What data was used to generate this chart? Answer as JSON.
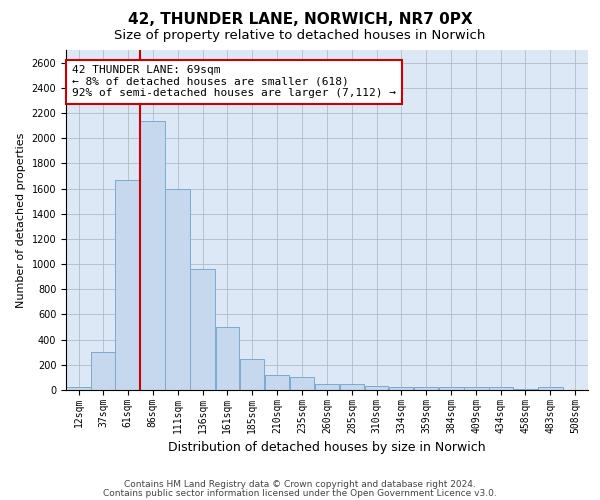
{
  "title": "42, THUNDER LANE, NORWICH, NR7 0PX",
  "subtitle": "Size of property relative to detached houses in Norwich",
  "xlabel": "Distribution of detached houses by size in Norwich",
  "ylabel": "Number of detached properties",
  "footnote1": "Contains HM Land Registry data © Crown copyright and database right 2024.",
  "footnote2": "Contains public sector information licensed under the Open Government Licence v3.0.",
  "annotation_line1": "42 THUNDER LANE: 69sqm",
  "annotation_line2": "← 8% of detached houses are smaller (618)",
  "annotation_line3": "92% of semi-detached houses are larger (7,112) →",
  "categories": [
    "12sqm",
    "37sqm",
    "61sqm",
    "86sqm",
    "111sqm",
    "136sqm",
    "161sqm",
    "185sqm",
    "210sqm",
    "235sqm",
    "260sqm",
    "285sqm",
    "310sqm",
    "334sqm",
    "359sqm",
    "384sqm",
    "409sqm",
    "434sqm",
    "458sqm",
    "483sqm",
    "508sqm"
  ],
  "values": [
    25,
    300,
    1670,
    2140,
    1595,
    960,
    500,
    250,
    120,
    100,
    50,
    45,
    35,
    25,
    20,
    20,
    20,
    20,
    5,
    20,
    0
  ],
  "bin_starts": [
    0,
    25,
    49,
    74,
    99,
    124,
    149,
    173,
    198,
    223,
    248,
    273,
    298,
    322,
    347,
    372,
    397,
    422,
    446,
    471,
    496
  ],
  "bin_ends": [
    25,
    49,
    74,
    99,
    124,
    149,
    173,
    198,
    223,
    248,
    273,
    298,
    322,
    347,
    372,
    397,
    422,
    446,
    471,
    496,
    521
  ],
  "bar_color": "#c5d8ee",
  "bar_edge_color": "#7aaad0",
  "vline_x_bin_index": 2,
  "vline_color": "#cc0000",
  "ylim": [
    0,
    2700
  ],
  "yticks": [
    0,
    200,
    400,
    600,
    800,
    1000,
    1200,
    1400,
    1600,
    1800,
    2000,
    2200,
    2400,
    2600
  ],
  "background_color": "#ffffff",
  "ax_background_color": "#dce8f5",
  "grid_color": "#b0bec5",
  "annotation_box_color": "#cc0000",
  "title_fontsize": 11,
  "subtitle_fontsize": 9.5,
  "xlabel_fontsize": 9,
  "ylabel_fontsize": 8,
  "tick_fontsize": 7,
  "annotation_fontsize": 8,
  "footnote_fontsize": 6.5
}
